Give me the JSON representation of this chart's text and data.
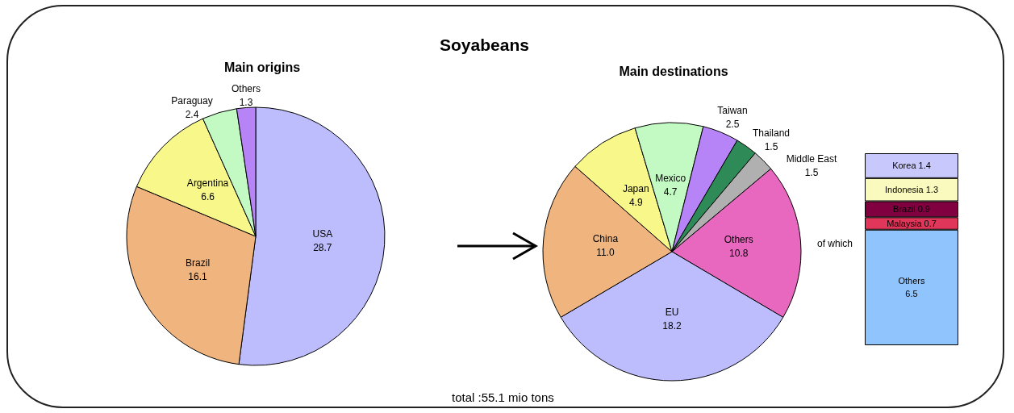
{
  "chart_data": [
    {
      "type": "pie",
      "title": "Main origins",
      "annotations": [
        "Soyabeans"
      ],
      "categories": [
        "USA",
        "Brazil",
        "Argentina",
        "Paraguay",
        "Others"
      ],
      "values": [
        28.7,
        16.1,
        6.6,
        2.4,
        1.3
      ],
      "value_labels": [
        "28.7",
        "16.1",
        "6.6",
        "2.4",
        "1.3"
      ],
      "colors": [
        "#bdbdfd",
        "#f0b47e",
        "#f7f78a",
        "#c3fac3",
        "#b784f7"
      ]
    },
    {
      "type": "pie",
      "title": "Main destinations",
      "annotations": [
        "total :55.1 mio tons"
      ],
      "categories": [
        "Others",
        "EU",
        "China",
        "Japan",
        "Mexico",
        "Taiwan",
        "Thailand",
        "Middle East"
      ],
      "values": [
        10.8,
        18.2,
        11.0,
        4.9,
        4.7,
        2.5,
        1.5,
        1.5
      ],
      "value_labels": [
        "10.8",
        "18.2",
        "11.0",
        "4.9",
        "4.7",
        "2.5",
        "1.5",
        "1.5"
      ],
      "colors": [
        "#e868c0",
        "#bdbdfd",
        "#f0b47e",
        "#f7f78a",
        "#c3fac3",
        "#b784f7",
        "#2e8b57",
        "#b0b0b0"
      ]
    },
    {
      "type": "bar",
      "stacked": true,
      "data_labels": true,
      "annotations": [
        "of which"
      ],
      "categories": [
        null
      ],
      "series": [
        {
          "name": "Others",
          "color": "#90c4fc",
          "values": [
            6.5
          ]
        },
        {
          "name": "Malaysia",
          "color": "#e0365a",
          "values": [
            0.7
          ]
        },
        {
          "name": "Brazil",
          "color": "#800040",
          "values": [
            0.9
          ]
        },
        {
          "name": "Indonesia",
          "color": "#fafabe",
          "values": [
            1.3
          ]
        },
        {
          "name": "Korea",
          "color": "#c8c8fc",
          "values": [
            1.4
          ]
        }
      ]
    }
  ]
}
